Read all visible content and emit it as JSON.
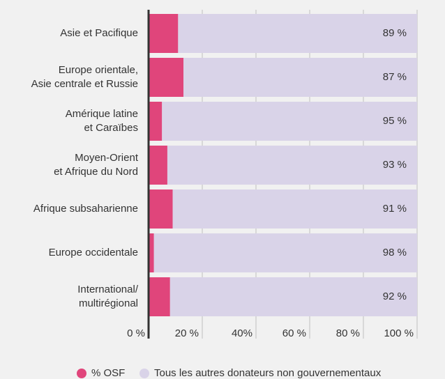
{
  "chart_data": {
    "type": "stacked_bar_horizontal",
    "categories": [
      [
        "Asie et Pacifique"
      ],
      [
        "Europe orientale,",
        "Asie centrale et Russie"
      ],
      [
        "Amérique latine",
        "et Caraïbes"
      ],
      [
        "Moyen-Orient",
        "et Afrique du Nord"
      ],
      [
        "Afrique subsaharienne"
      ],
      [
        "Europe occidentale"
      ],
      [
        "International/",
        "multirégional"
      ]
    ],
    "series": [
      {
        "name": "% OSF",
        "color": "#e0457b",
        "values": [
          11,
          13,
          5,
          7,
          9,
          2,
          8
        ],
        "value_labels": [
          "11 %",
          "13 %",
          "5 %",
          "7 %",
          "9 %",
          "2 %",
          "8 %"
        ]
      },
      {
        "name": "Tous les autres donateurs non gouvernementaux",
        "color": "#d9d3e8",
        "values": [
          89,
          87,
          95,
          93,
          91,
          98,
          92
        ],
        "value_labels": [
          "89 %",
          "87 %",
          "95 %",
          "93 %",
          "91 %",
          "98 %",
          "92 %"
        ]
      }
    ],
    "xlim": [
      0,
      100
    ],
    "xticks": [
      {
        "value": 0,
        "label": "0 %"
      },
      {
        "value": 20,
        "label": "20 %"
      },
      {
        "value": 40,
        "label": "40%"
      },
      {
        "value": 60,
        "label": "60 %"
      },
      {
        "value": 80,
        "label": "80 %"
      },
      {
        "value": 100,
        "label": "100 %"
      }
    ],
    "grid": true,
    "legend": "bottom"
  }
}
